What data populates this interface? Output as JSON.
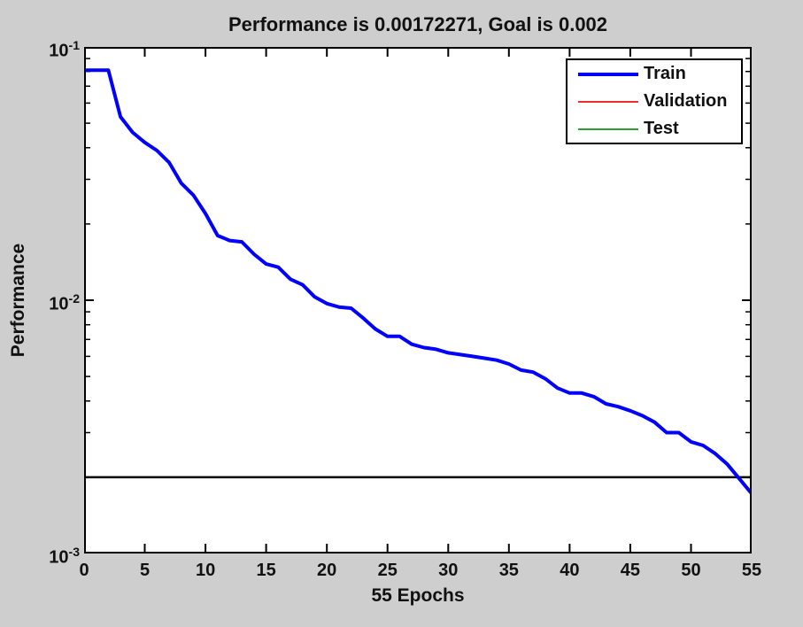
{
  "figure": {
    "title": "Performance is 0.00172271, Goal is 0.002",
    "xlabel": "55 Epochs",
    "ylabel": "Performance"
  },
  "colors": {
    "figure_background": "#cecece",
    "plot_background": "#ffffff",
    "axis": "#000000",
    "train": "#0000ff",
    "validation": "#f42c2c",
    "test": "#2e9e2e",
    "goal_line": "#000000"
  },
  "legend": {
    "items": [
      {
        "label": "Train",
        "color": "#0000ff",
        "weight": 4
      },
      {
        "label": "Validation",
        "color": "#f42c2c",
        "weight": 2
      },
      {
        "label": "Test",
        "color": "#2e9e2e",
        "weight": 2
      }
    ]
  },
  "chart_data": {
    "type": "line",
    "title": "Performance is 0.00172271, Goal is 0.002",
    "xlabel": "55 Epochs",
    "ylabel": "Performance",
    "xlim": [
      0,
      55
    ],
    "ylim": [
      0.001,
      0.1
    ],
    "yscale": "log",
    "grid": false,
    "legend_position": "top-right",
    "x_ticks": [
      0,
      5,
      10,
      15,
      20,
      25,
      30,
      35,
      40,
      45,
      50,
      55
    ],
    "y_ticks": [
      {
        "base": "10",
        "exp": "-1",
        "value": 0.1
      },
      {
        "base": "10",
        "exp": "-2",
        "value": 0.01
      },
      {
        "base": "10",
        "exp": "-3",
        "value": 0.001
      }
    ],
    "goal": {
      "label": "Goal",
      "value": 0.002
    },
    "final_performance": 0.00172271,
    "epochs": 55,
    "series": [
      {
        "name": "Train",
        "color": "#0000ff",
        "stroke_width": 4,
        "x_is_epoch_index": true,
        "values": [
          0.081,
          0.081,
          0.081,
          0.053,
          0.046,
          0.042,
          0.039,
          0.035,
          0.029,
          0.026,
          0.022,
          0.018,
          0.0172,
          0.017,
          0.0152,
          0.0139,
          0.0135,
          0.0121,
          0.0115,
          0.0103,
          0.0097,
          0.0094,
          0.0093,
          0.0085,
          0.0077,
          0.0072,
          0.0072,
          0.0067,
          0.0065,
          0.0064,
          0.0062,
          0.0061,
          0.006,
          0.0059,
          0.0058,
          0.0056,
          0.0053,
          0.0052,
          0.0049,
          0.0045,
          0.0043,
          0.0043,
          0.00416,
          0.0039,
          0.0038,
          0.00366,
          0.0035,
          0.0033,
          0.003,
          0.003,
          0.00276,
          0.00267,
          0.00248,
          0.00225,
          0.00197,
          0.00172271
        ]
      },
      {
        "name": "Validation",
        "color": "#f42c2c",
        "stroke_width": 2,
        "values": []
      },
      {
        "name": "Test",
        "color": "#2e9e2e",
        "stroke_width": 2,
        "values": []
      }
    ]
  }
}
